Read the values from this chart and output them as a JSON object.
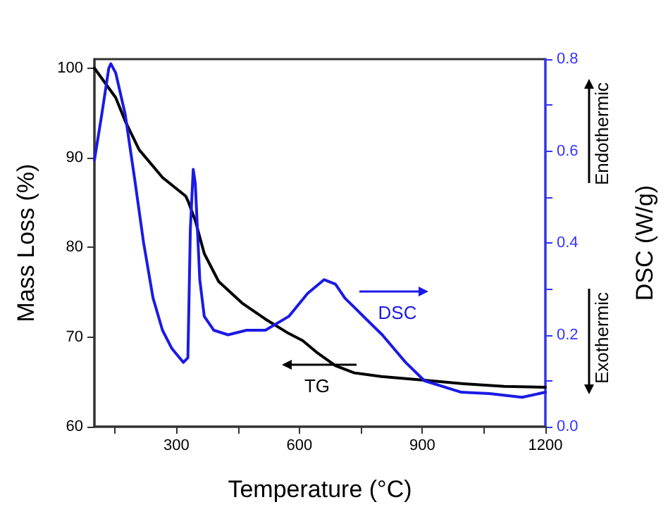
{
  "chart_data": {
    "type": "line",
    "xlabel": "Temperature (°C)",
    "ylabel": "Mass Loss (%)",
    "y2label": "DSC (W/g)",
    "xlim": [
      100,
      1200
    ],
    "xticks": [
      {
        "value": 150,
        "label": null
      },
      300,
      {
        "value": 450,
        "label": null
      },
      600,
      {
        "value": 750,
        "label": null
      },
      900,
      {
        "value": 1050,
        "label": null
      },
      1200
    ],
    "ylim": [
      60,
      101
    ],
    "yticks": [
      60,
      70,
      80,
      90,
      100
    ],
    "y2lim": [
      0,
      0.8
    ],
    "y2ticks": [
      "0.0",
      {
        "value": 0.1,
        "label": null
      },
      {
        "value": 0.2,
        "label": "0.2"
      },
      {
        "value": 0.3,
        "label": null
      },
      {
        "value": 0.4,
        "label": "0.4"
      },
      {
        "value": 0.5,
        "label": null
      },
      {
        "value": 0.6,
        "label": "0.6"
      },
      {
        "value": 0.7,
        "label": null
      },
      {
        "value": 0.8,
        "label": "0.8"
      }
    ],
    "legend": "bottom",
    "grid": false,
    "marker": "none",
    "line_style": "solid",
    "annotations": [
      "Endothermic",
      "Exothermic"
    ],
    "series": [
      {
        "name": "TG",
        "color": "#000000",
        "x": [
          100,
          152,
          175,
          209,
          266,
          323,
          329,
          346,
          368,
          403,
          460,
          517,
          574,
          608,
          642,
          688,
          734,
          800,
          900,
          1000,
          1100,
          1200
        ],
        "values": [
          100,
          96.7,
          94.1,
          90.9,
          87.8,
          85.7,
          85.1,
          83.0,
          79.3,
          76.2,
          73.8,
          72.0,
          70.4,
          69.6,
          68.3,
          66.8,
          66.0,
          65.6,
          65.2,
          64.8,
          64.5,
          64.4
        ]
      },
      {
        "name": "DSC",
        "color": "#1a1ae6",
        "axis": "y2",
        "x": [
          100,
          118,
          135,
          140,
          152,
          175,
          198,
          220,
          243,
          266,
          289,
          317,
          328,
          334,
          341,
          346,
          357,
          368,
          391,
          426,
          471,
          517,
          574,
          620,
          660,
          688,
          711,
          745,
          802,
          859,
          905,
          995,
          1064,
          1143,
          1200
        ],
        "values": [
          0.58,
          0.68,
          0.78,
          0.79,
          0.77,
          0.68,
          0.54,
          0.4,
          0.28,
          0.21,
          0.17,
          0.14,
          0.15,
          0.43,
          0.56,
          0.53,
          0.32,
          0.24,
          0.21,
          0.2,
          0.21,
          0.21,
          0.24,
          0.29,
          0.32,
          0.31,
          0.28,
          0.25,
          0.2,
          0.14,
          0.1,
          0.075,
          0.072,
          0.064,
          0.075
        ]
      }
    ]
  }
}
